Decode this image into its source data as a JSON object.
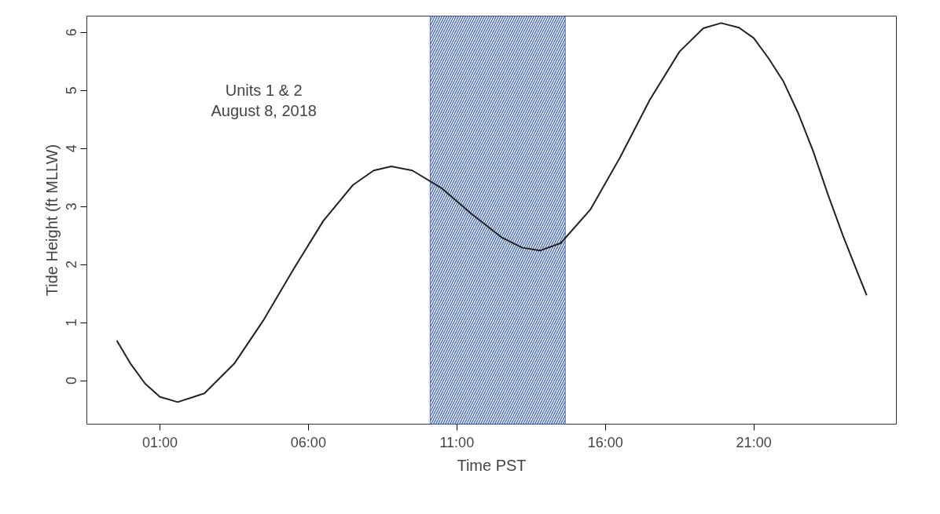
{
  "chart_data": {
    "type": "line",
    "xlabel": "Time PST",
    "ylabel": "Tide Height (ft MLLW)",
    "annotations": [
      "Units 1 & 2\nAugust 8, 2018"
    ],
    "x": [
      -0.45,
      0,
      0.5,
      1.0,
      1.6,
      2.5,
      3.5,
      4.5,
      5.5,
      6.5,
      7.5,
      8.2,
      8.8,
      9.5,
      10.5,
      11.5,
      12.5,
      13.2,
      13.8,
      14.5,
      15.5,
      16.5,
      17.5,
      18.5,
      19.3,
      19.9,
      20.5,
      21,
      21.5,
      22,
      22.5,
      23,
      23.5,
      24,
      24.5,
      24.8
    ],
    "series": [
      {
        "color": "#222222",
        "values": [
          0.69,
          0.3,
          -0.05,
          -0.28,
          -0.37,
          -0.22,
          0.29,
          1.05,
          1.92,
          2.75,
          3.37,
          3.62,
          3.69,
          3.62,
          3.31,
          2.87,
          2.47,
          2.29,
          2.24,
          2.37,
          2.95,
          3.85,
          4.84,
          5.67,
          6.07,
          6.16,
          6.08,
          5.9,
          5.55,
          5.15,
          4.6,
          3.95,
          3.2,
          2.5,
          1.85,
          1.47
        ]
      }
    ],
    "xlim": [
      -1.46,
      25.8
    ],
    "ylim": [
      -0.75,
      6.28
    ],
    "xticks": [
      {
        "value": 1,
        "label": "01:00"
      },
      {
        "value": 6,
        "label": "06:00"
      },
      {
        "value": 11,
        "label": "11:00"
      },
      {
        "value": 16,
        "label": "16:00"
      },
      {
        "value": 21,
        "label": "21:00"
      }
    ],
    "yticks": [
      0,
      1,
      2,
      3,
      4,
      5,
      6
    ],
    "bands": [
      {
        "axis": "x",
        "from": 10.1,
        "to": 14.65,
        "color": "#4f6fb8"
      }
    ],
    "grid": false,
    "marker": "none",
    "line_style": "solid"
  }
}
